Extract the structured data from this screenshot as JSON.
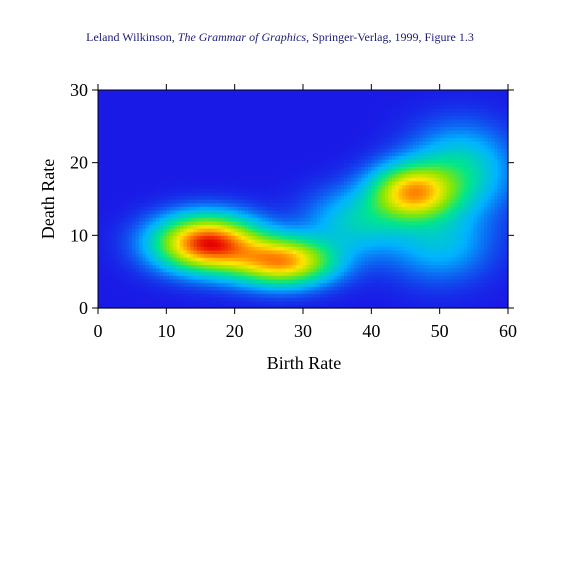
{
  "caption": {
    "author": "Leland Wilkinson, ",
    "book_title": "The Grammar of Graphics",
    "publisher_info": ", Springer-Verlag, 1999, Figure 1.3",
    "color": "#1c1c7a"
  },
  "chart_data": {
    "type": "heatmap",
    "xlabel": "Birth Rate",
    "ylabel": "Death Rate",
    "xlim": [
      0,
      60
    ],
    "ylim": [
      0,
      30
    ],
    "x_ticks": [
      0,
      10,
      20,
      30,
      40,
      50,
      60
    ],
    "y_ticks": [
      0,
      10,
      20,
      30
    ],
    "x_tick_labels": [
      "0",
      "10",
      "20",
      "30",
      "40",
      "50",
      "60"
    ],
    "y_tick_labels": [
      "0",
      "10",
      "20",
      "30"
    ],
    "grid": false,
    "legend": "none",
    "colormap": [
      "#1a1ae6",
      "#00b3ff",
      "#00e68c",
      "#8ce600",
      "#ffe600",
      "#ff7a00",
      "#e60000"
    ],
    "background_color": "#1a1ae6",
    "density_components": [
      {
        "x": 16,
        "y": 9,
        "spread_x": 5,
        "spread_y": 2.5,
        "weight": 1.0
      },
      {
        "x": 27,
        "y": 6.5,
        "spread_x": 5,
        "spread_y": 2.2,
        "weight": 0.8
      },
      {
        "x": 46,
        "y": 16,
        "spread_x": 4,
        "spread_y": 2.5,
        "weight": 0.72
      },
      {
        "x": 53,
        "y": 19,
        "spread_x": 5,
        "spread_y": 4,
        "weight": 0.3
      },
      {
        "x": 38,
        "y": 12,
        "spread_x": 5,
        "spread_y": 3,
        "weight": 0.25
      },
      {
        "x": 50,
        "y": 9,
        "spread_x": 5,
        "spread_y": 3.5,
        "weight": 0.2
      }
    ]
  }
}
